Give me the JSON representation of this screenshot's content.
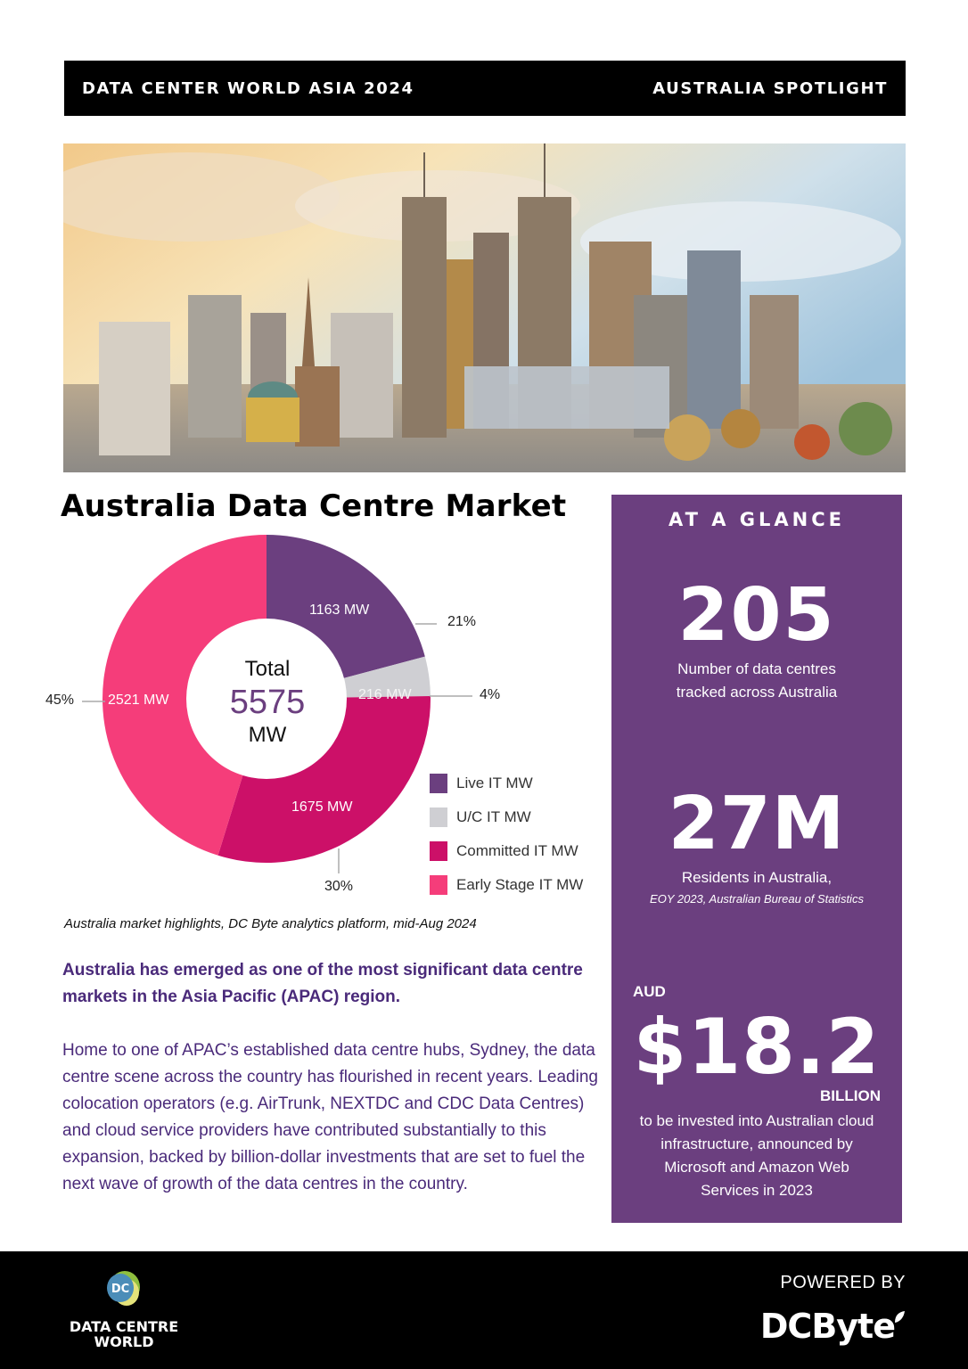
{
  "header": {
    "left": "DATA CENTER WORLD ASIA 2024",
    "right": "AUSTRALIA SPOTLIGHT"
  },
  "hero": {
    "alt": "Melbourne city skyline at sunset"
  },
  "section_title": "Australia Data Centre Market",
  "chart_data": {
    "type": "pie",
    "title": "Australia Data Centre Market",
    "center_label": {
      "line1": "Total",
      "value": "5575",
      "unit": "MW"
    },
    "total": 5575,
    "unit": "MW",
    "categories": [
      "Live IT MW",
      "U/C IT MW",
      "Committed IT MW",
      "Early Stage IT MW"
    ],
    "values": [
      1163,
      216,
      1675,
      2521
    ],
    "percentages": [
      21,
      4,
      30,
      45
    ],
    "slice_labels": [
      "1163 MW",
      "216 MW",
      "1675 MW",
      "2521 MW"
    ],
    "pct_labels": [
      "21%",
      "4%",
      "30%",
      "45%"
    ],
    "colors": [
      "#6b3f7f",
      "#cfcfd3",
      "#cc1068",
      "#f53d7a"
    ],
    "legend_position": "bottom-right",
    "donut": true
  },
  "caption": "Australia market highlights, DC Byte analytics platform, mid-Aug 2024",
  "lead": "Australia has emerged as one of the most significant data centre markets in the Asia Pacific (APAC) region.",
  "body": "Home to one of APAC’s established data centre hubs, Sydney, the data centre scene across the country has flourished in recent years. Leading colocation operators (e.g. AirTrunk, NEXTDC and CDC Data Centres) and cloud service providers have contributed substantially to this expansion, backed by billion-dollar investments that are set to fuel the next wave of growth of the data centres in the country.",
  "glance": {
    "title": "AT A GLANCE",
    "stat1": {
      "value": "205",
      "desc1": "Number of data centres",
      "desc2": "tracked across Australia"
    },
    "stat2": {
      "value": "27M",
      "desc": "Residents in Australia,",
      "source": "EOY 2023, Australian Bureau of Statistics"
    },
    "stat3": {
      "prefix": "AUD",
      "value": "$18.2",
      "suffix": "BILLION",
      "desc1": "to be invested into Australian cloud",
      "desc2": "infrastructure, announced by",
      "desc3": "Microsoft and Amazon Web",
      "desc4": "Services in 2023"
    },
    "bg_color": "#6b3f7f"
  },
  "footer": {
    "left_logo_line1": "DATA CENTRE",
    "left_logo_line2": "WORLD",
    "powered_by": "POWERED BY",
    "right_logo": "DCByte"
  }
}
